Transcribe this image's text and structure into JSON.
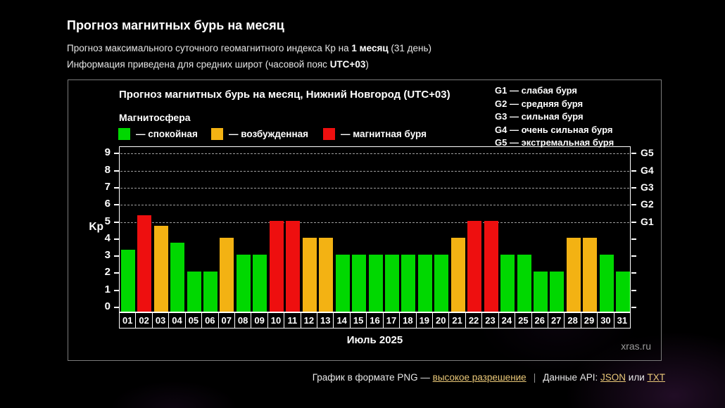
{
  "header": {
    "title": "Прогноз магнитных бурь на месяц",
    "sub1_prefix": "Прогноз максимального суточного геомагнитного индекса Кр на ",
    "sub1_bold": "1 месяц",
    "sub1_suffix": " (31 день)",
    "sub2_prefix": "Информация приведена для средних широт (часовой пояс ",
    "sub2_bold": "UTC+03",
    "sub2_suffix": ")"
  },
  "chart": {
    "title": "Прогноз магнитных бурь на месяц, Нижний Новгород (UTC+03)",
    "legend_title": "Магнитосфера",
    "legend": [
      {
        "label": "— спокойная",
        "color": "#00d800"
      },
      {
        "label": "— возбужденная",
        "color": "#f3b213"
      },
      {
        "label": "— магнитная буря",
        "color": "#ee0f0f"
      }
    ],
    "g_legend": [
      "G1 — слабая буря",
      "G2 — средняя буря",
      "G3 — сильная буря",
      "G4 — очень сильная буря",
      "G5 — экстремальная буря"
    ],
    "ylabel": "Kp",
    "xlabel": "Июль 2025",
    "watermark": "xras.ru"
  },
  "chart_data": {
    "type": "bar",
    "title": "Прогноз магнитных бурь на месяц, Нижний Новгород (UTC+03)",
    "xlabel": "Июль 2025",
    "ylabel": "Kp",
    "categories": [
      "01",
      "02",
      "03",
      "04",
      "05",
      "06",
      "07",
      "08",
      "09",
      "10",
      "11",
      "12",
      "13",
      "14",
      "15",
      "16",
      "17",
      "18",
      "19",
      "20",
      "21",
      "22",
      "23",
      "24",
      "25",
      "26",
      "27",
      "28",
      "29",
      "30",
      "31"
    ],
    "values": [
      3.3,
      5.3,
      4.7,
      3.7,
      2,
      2,
      4,
      3,
      3,
      5,
      5,
      4,
      4,
      3,
      3,
      3,
      3,
      3,
      3,
      3,
      4,
      5,
      5,
      3,
      3,
      2,
      2,
      4,
      4,
      3,
      2
    ],
    "ylim": [
      0,
      9.4
    ],
    "yticks": [
      0,
      1,
      2,
      3,
      4,
      5,
      6,
      7,
      8,
      9
    ],
    "right_axis_labels": [
      {
        "value": 5,
        "label": "G1"
      },
      {
        "value": 6,
        "label": "G2"
      },
      {
        "value": 7,
        "label": "G3"
      },
      {
        "value": 8,
        "label": "G4"
      },
      {
        "value": 9,
        "label": "G5"
      }
    ],
    "gridlines_at": [
      5,
      6,
      7,
      8,
      9
    ],
    "grid_style": "dashed-horizontal",
    "legend_position": "top-left-inside",
    "color_rules": [
      {
        "min": 5,
        "color": "#ee0f0f",
        "name": "магнитная буря"
      },
      {
        "min": 4,
        "color": "#f3b213",
        "name": "возбужденная"
      },
      {
        "min": 0,
        "color": "#00d800",
        "name": "спокойная"
      }
    ]
  },
  "footer": {
    "text1": "График в формате PNG — ",
    "link1": "высокое разрешение",
    "sep": "|",
    "text2": "Данные API: ",
    "link2": "JSON",
    "text3": " или ",
    "link3": "TXT"
  }
}
